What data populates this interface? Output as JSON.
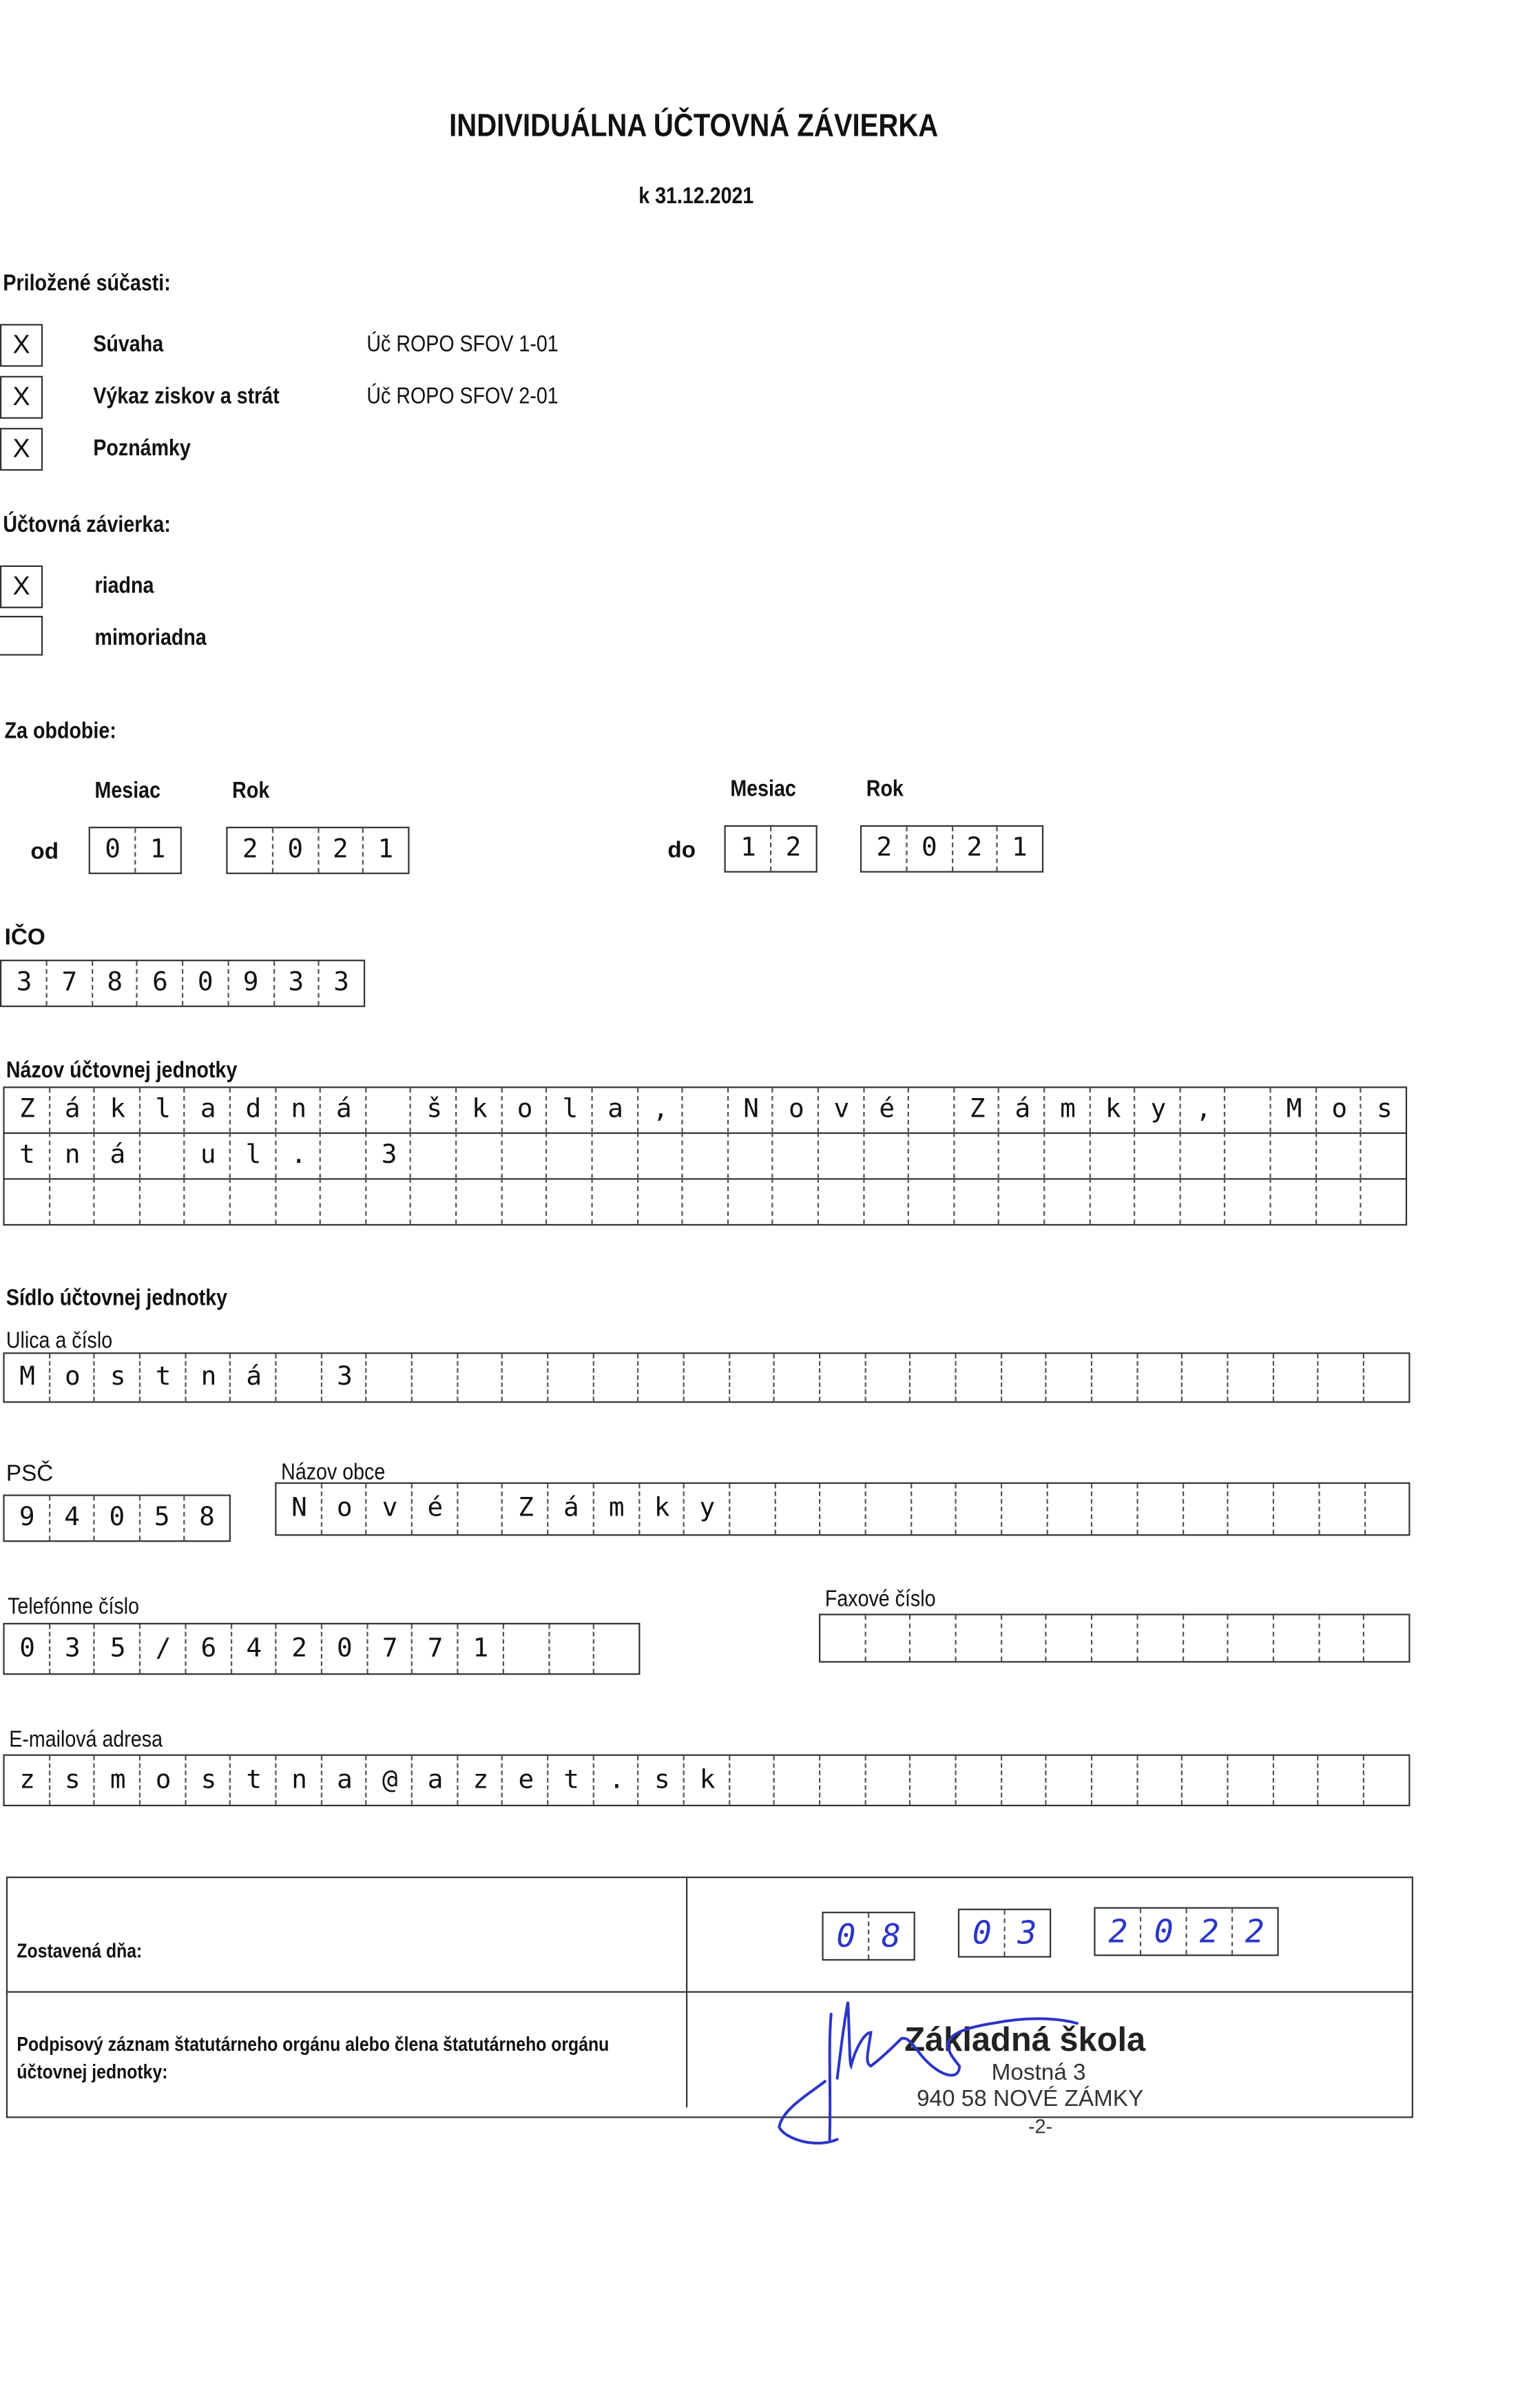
{
  "header": {
    "title": "INDIVIDUÁLNA ÚČTOVNÁ ZÁVIERKA",
    "date": "k 31.12.2021"
  },
  "attachments": {
    "heading": "Priložené súčasti:",
    "items": [
      {
        "mark": "X",
        "label": "Súvaha",
        "code": "Úč ROPO SFOV 1-01"
      },
      {
        "mark": "X",
        "label": "Výkaz ziskov a strát",
        "code": "Úč ROPO SFOV 2-01"
      },
      {
        "mark": "X",
        "label": "Poznámky",
        "code": ""
      }
    ]
  },
  "closing_type": {
    "heading": "Účtovná závierka:",
    "items": [
      {
        "mark": "X",
        "label": "riadna"
      },
      {
        "mark": "",
        "label": "mimoriadna"
      }
    ]
  },
  "period": {
    "heading": "Za obdobie:",
    "month_label": "Mesiac",
    "year_label": "Rok",
    "from_label": "od",
    "to_label": "do",
    "from_month": "01",
    "from_year": "2021",
    "to_month": "12",
    "to_year": "2021"
  },
  "ico": {
    "label": "IČO",
    "value": "37860933"
  },
  "entity_name": {
    "label": "Názov účtovnej jednotky",
    "rows": [
      "Základná škola, Nové Zámky, Mos",
      "tná ul. 3",
      ""
    ]
  },
  "seat": {
    "heading": "Sídlo účtovnej jednotky",
    "street_label": "Ulica a číslo",
    "street": "Mostná 3",
    "psc_label": "PSČ",
    "psc": "94058",
    "city_label": "Názov obce",
    "city": "Nové Zámky",
    "phone_label": "Telefónne číslo",
    "phone": "035/6420771",
    "fax_label": "Faxové číslo",
    "fax": "",
    "email_label": "E-mailová adresa",
    "email": "zsmostna@azet.sk"
  },
  "signature_table": {
    "compiled_label": "Zostavená dňa:",
    "day": "08",
    "month": "03",
    "year": "2022",
    "signature_label_1": "Podpisový záznam štatutárneho orgánu alebo člena štatutárneho orgánu",
    "signature_label_2": "účtovnej jednotky:"
  },
  "stamp": {
    "line1": "Základná škola",
    "line2": "Mostná 3",
    "line3": "940 58 NOVÉ ZÁMKY",
    "page": "-2-"
  },
  "colors": {
    "ink": "#2b35c8",
    "text": "#111111"
  }
}
